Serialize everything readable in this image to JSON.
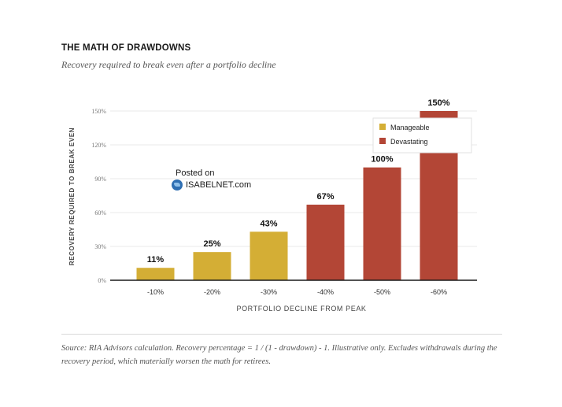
{
  "title": "THE MATH OF DRAWDOWNS",
  "subtitle": "Recovery required to break even after a portfolio decline",
  "watermark": {
    "line1": "Posted on",
    "line2": "ISABELNET.com"
  },
  "source_note": "Source: RIA Advisors calculation. Recovery percentage = 1 / (1 - drawdown) - 1. Illustrative only. Excludes withdrawals during the recovery period, which materially worsen the math for retirees.",
  "chart_data": {
    "type": "bar",
    "title": "THE MATH OF DRAWDOWNS",
    "subtitle": "Recovery required to break even after a portfolio decline",
    "xlabel": "PORTFOLIO DECLINE FROM PEAK",
    "ylabel": "RECOVERY REQUIRED TO BREAK EVEN",
    "categories": [
      "-10%",
      "-20%",
      "-30%",
      "-40%",
      "-50%",
      "-60%"
    ],
    "values": [
      11,
      25,
      43,
      67,
      100,
      150
    ],
    "data_labels": [
      "11%",
      "25%",
      "43%",
      "67%",
      "100%",
      "150%"
    ],
    "bar_groups": [
      "Manageable",
      "Manageable",
      "Manageable",
      "Devastating",
      "Devastating",
      "Devastating"
    ],
    "yticks": [
      0,
      30,
      60,
      90,
      120,
      150
    ],
    "ytick_labels": [
      "0%",
      "30%",
      "60%",
      "90%",
      "120%",
      "150%"
    ],
    "ylim": [
      0,
      150
    ],
    "grid": true,
    "legend": {
      "position": "top-right",
      "entries": [
        {
          "name": "Manageable",
          "color": "#d4ae35"
        },
        {
          "name": "Devastating",
          "color": "#b34636"
        }
      ]
    }
  }
}
